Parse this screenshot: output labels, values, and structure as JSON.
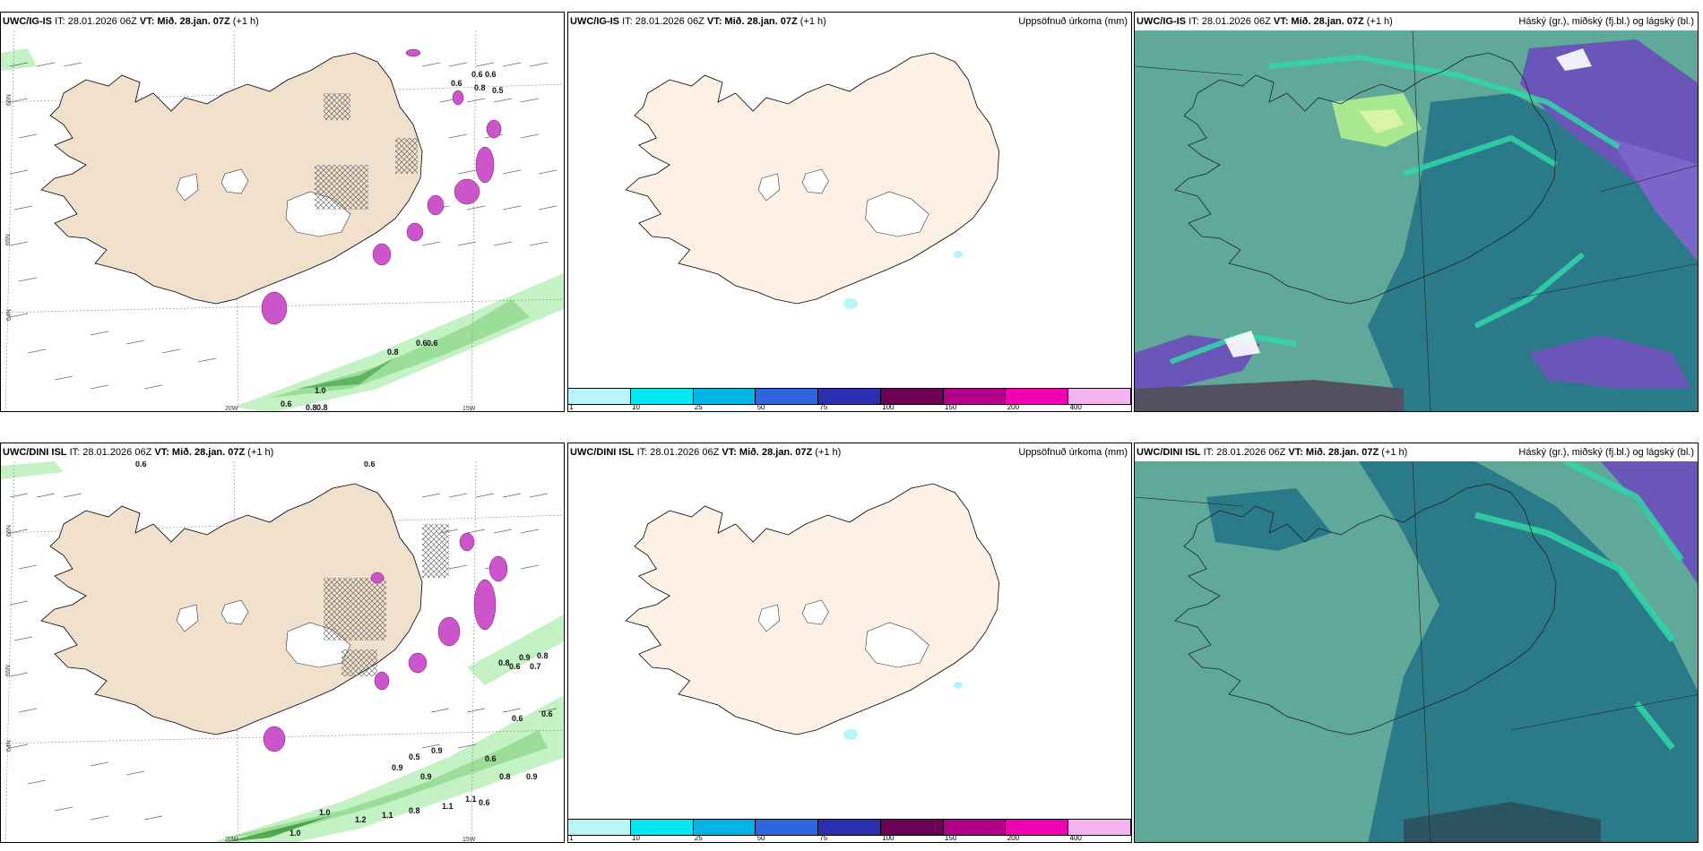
{
  "panels": {
    "p1": {
      "model": "UWC/IG-IS",
      "it_text": "IT: 28.01.2026 06Z",
      "vt_text": "VT: Mið. 28.jan. 07Z",
      "offset": "(+1 h)",
      "right_title": ""
    },
    "p2": {
      "model": "UWC/IG-IS",
      "it_text": "IT: 28.01.2026 06Z",
      "vt_text": "VT: Mið. 28.jan. 07Z",
      "offset": "(+1 h)",
      "right_title": "Uppsöfnuð úrkoma (mm)"
    },
    "p3": {
      "model": "UWC/IG-IS",
      "it_text": "IT: 28.01.2026 06Z",
      "vt_text": "VT: Mið. 28.jan. 07Z",
      "offset": "(+1 h)",
      "right_title": "Háský (gr.), miðský (fj.bl.) og lágský (bl.)"
    },
    "p4": {
      "model": "UWC/DINI ISL",
      "it_text": "IT: 28.01.2026 06Z",
      "vt_text": "VT: Mið. 28.jan. 07Z",
      "offset": "(+1 h)",
      "right_title": ""
    },
    "p5": {
      "model": "UWC/DINI ISL",
      "it_text": "IT: 28.01.2026 06Z",
      "vt_text": "VT: Mið. 28.jan. 07Z",
      "offset": "(+1 h)",
      "right_title": "Uppsöfnuð úrkoma (mm)"
    },
    "p6": {
      "model": "UWC/DINI ISL",
      "it_text": "IT: 28.01.2026 06Z",
      "vt_text": "VT: Mið. 28.jan. 07Z",
      "offset": "(+1 h)",
      "right_title": "Háský (gr.), miðský (fj.bl.) og lágský (bl.)"
    }
  },
  "axis_labels": {
    "lat66": "66N",
    "lat65": "65N",
    "lat64": "64N",
    "lon20": "20W",
    "lon15": "15W"
  },
  "colorbar": {
    "ticks": [
      "1",
      "10",
      "25",
      "50",
      "75",
      "100",
      "150",
      "200",
      "400"
    ],
    "colors": [
      "#b8f4f8",
      "#00e8f0",
      "#00b4e6",
      "#2f66e0",
      "#2a2fb0",
      "#6b0055",
      "#b0008a",
      "#f000b0",
      "#f4b4f0"
    ]
  },
  "colors": {
    "land": "#f0e0cc",
    "land_precip": "#fdf0e4",
    "sea_cloud": "#2b7a8a",
    "mid_cloud": "#5fa89a",
    "high_cloud": "#6a55b8",
    "low_cloud": "#30d8a8",
    "precip_green": "#b8f0b8",
    "snow_purple": "#cc55cc"
  },
  "top_left_labels": [
    "0.6",
    "0.6",
    "0.6",
    "0.8",
    "0.5",
    "0.6",
    "0.8",
    "0.6",
    "1.0",
    "0.6",
    "0.8",
    "0.8"
  ],
  "bottom_left_labels": [
    "0.6",
    "0.6",
    "0.8",
    "0.9",
    "0.7",
    "0.8",
    "0.6",
    "0.6",
    "0.5",
    "0.9",
    "0.6",
    "0.9",
    "0.9",
    "0.6",
    "0.8",
    "0.9",
    "1.0",
    "1.0",
    "1.1",
    "0.8",
    "1.1",
    "0.6",
    "1.2",
    "1.1"
  ]
}
